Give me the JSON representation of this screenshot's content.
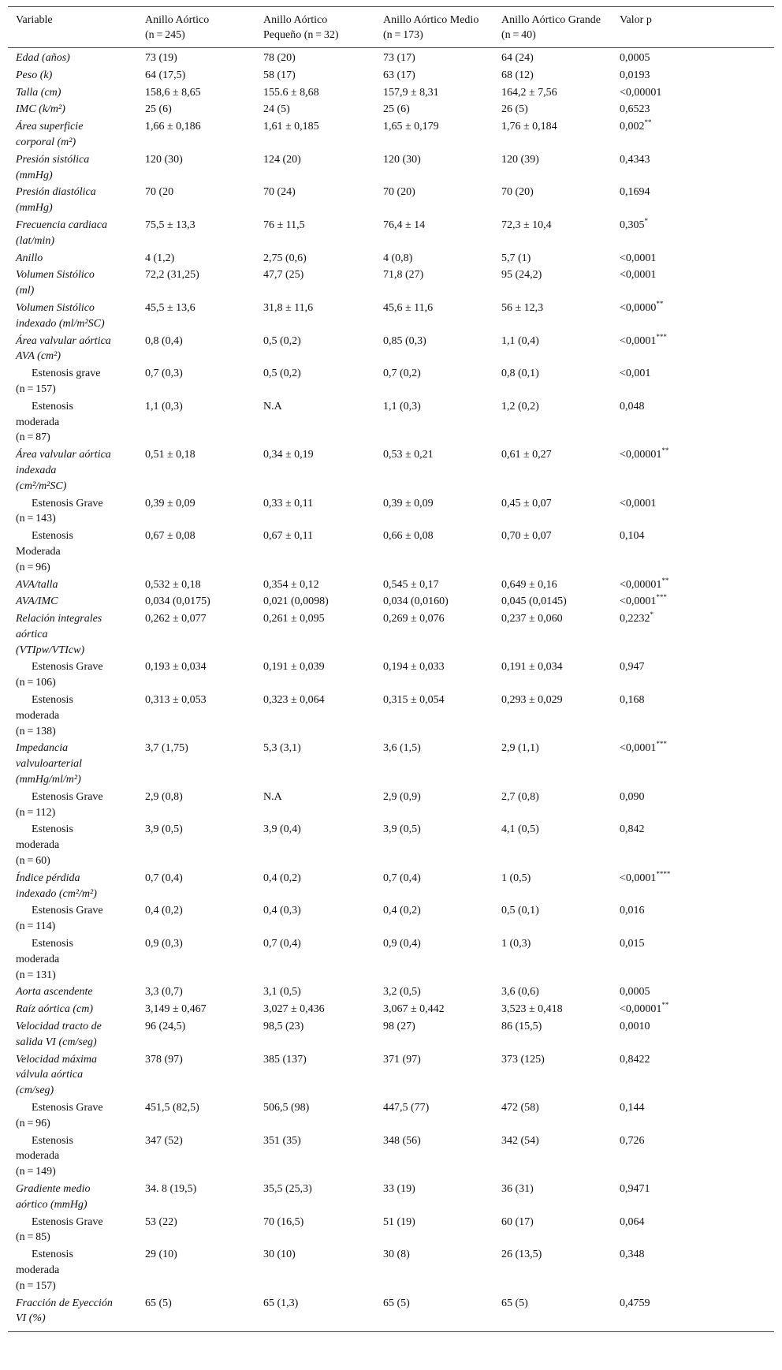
{
  "header": {
    "variable": "Variable",
    "col1": [
      "Anillo Aórtico",
      "(n = 245)"
    ],
    "col2": [
      "Anillo Aórtico",
      "Pequeño (n = 32)"
    ],
    "col3": [
      "Anillo Aórtico Medio",
      "(n = 173)"
    ],
    "col4": [
      "Anillo Aórtico Grande",
      "(n = 40)"
    ],
    "p": "Valor p"
  },
  "rows": [
    {
      "name": [
        "Edad (años)"
      ],
      "v": [
        "73 (19)",
        "78 (20)",
        "73 (17)",
        "64 (24)"
      ],
      "p": "0,0005",
      "sup": ""
    },
    {
      "name": [
        "Peso (k)"
      ],
      "v": [
        "64 (17,5)",
        "58 (17)",
        "63 (17)",
        "68 (12)"
      ],
      "p": "0,0193",
      "sup": ""
    },
    {
      "name": [
        "Talla (cm)"
      ],
      "v": [
        "158,6 ± 8,65",
        "155.6 ± 8,68",
        "157,9 ± 8,31",
        "164,2 ± 7,56"
      ],
      "p": "<0,00001",
      "sup": ""
    },
    {
      "name": [
        "IMC (k/m²)"
      ],
      "v": [
        "25 (6)",
        "24 (5)",
        "25 (6)",
        "26 (5)"
      ],
      "p": "0,6523",
      "sup": ""
    },
    {
      "name": [
        "Área superficie",
        "corporal (m²)"
      ],
      "v": [
        "1,66 ± 0,186",
        "1,61 ± 0,185",
        "1,65 ± 0,179",
        "1,76 ± 0,184"
      ],
      "p": "0,002",
      "sup": "**"
    },
    {
      "name": [
        "Presión sistólica",
        "(mmHg)"
      ],
      "v": [
        "120 (30)",
        "124 (20)",
        "120 (30)",
        "120 (39)"
      ],
      "p": "0,4343",
      "sup": ""
    },
    {
      "name": [
        "Presión diastólica",
        "(mmHg)"
      ],
      "v": [
        "70 (20",
        "70 (24)",
        "70 (20)",
        "70 (20)"
      ],
      "p": "0,1694",
      "sup": ""
    },
    {
      "name": [
        "Frecuencia cardiaca",
        "(lat/min)"
      ],
      "v": [
        "75,5 ± 13,3",
        "76 ± 11,5",
        "76,4 ± 14",
        "72,3 ± 10,4"
      ],
      "p": "0,305",
      "sup": "*"
    },
    {
      "name": [
        "Anillo"
      ],
      "v": [
        "4 (1,2)",
        "2,75 (0,6)",
        "4 (0,8)",
        "5,7 (1)"
      ],
      "p": "<0,0001",
      "sup": ""
    },
    {
      "name": [
        "Volumen Sistólico",
        "(ml)"
      ],
      "v": [
        "72,2 (31,25)",
        "47,7 (25)",
        "71,8 (27)",
        "95 (24,2)"
      ],
      "p": "<0,0001",
      "sup": ""
    },
    {
      "name": [
        "Volumen Sistólico",
        "indexado (ml/m²SC)"
      ],
      "v": [
        "45,5 ± 13,6",
        "31,8 ± 11,6",
        "45,6 ± 11,6",
        "56 ± 12,3"
      ],
      "p": "<0,0000",
      "sup": "**"
    },
    {
      "name": [
        "Área valvular aórtica",
        "AVA (cm²)"
      ],
      "v": [
        "0,8 (0,4)",
        "0,5 (0,2)",
        "0,85 (0,3)",
        "1,1 (0,4)"
      ],
      "p": "<0,0001",
      "sup": "***"
    },
    {
      "sub": true,
      "name": [
        "Estenosis grave",
        "(n = 157)"
      ],
      "v": [
        "0,7 (0,3)",
        "0,5 (0,2)",
        "0,7 (0,2)",
        "0,8 (0,1)"
      ],
      "p": "<0,001",
      "sup": ""
    },
    {
      "sub": true,
      "name": [
        "Estenosis",
        "moderada",
        "(n = 87)"
      ],
      "v": [
        "1,1 (0,3)",
        "N.A",
        "1,1 (0,3)",
        "1,2 (0,2)"
      ],
      "p": "0,048",
      "sup": ""
    },
    {
      "name": [
        "Área valvular aórtica",
        "indexada",
        "(cm²/m²SC)"
      ],
      "v": [
        "0,51 ± 0,18",
        "0,34 ± 0,19",
        "0,53 ± 0,21",
        "0,61 ± 0,27"
      ],
      "p": "<0,00001",
      "sup": "**"
    },
    {
      "sub": true,
      "name": [
        "Estenosis Grave",
        "(n = 143)"
      ],
      "v": [
        "0,39 ± 0,09",
        "0,33 ± 0,11",
        "0,39 ± 0,09",
        "0,45 ± 0,07"
      ],
      "p": "<0,0001",
      "sup": ""
    },
    {
      "sub": true,
      "name": [
        "Estenosis",
        "Moderada",
        "(n = 96)"
      ],
      "v": [
        "0,67 ± 0,08",
        "0,67 ± 0,11",
        "0,66 ± 0,08",
        "0,70 ± 0,07"
      ],
      "p": "0,104",
      "sup": ""
    },
    {
      "name": [
        "AVA/talla"
      ],
      "v": [
        "0,532 ± 0,18",
        "0,354 ± 0,12",
        "0,545 ± 0,17",
        "0,649 ± 0,16"
      ],
      "p": "<0,00001",
      "sup": "**"
    },
    {
      "name": [
        "AVA/IMC"
      ],
      "v": [
        "0,034 (0,0175)",
        "0,021 (0,0098)",
        "0,034 (0,0160)",
        "0,045 (0,0145)"
      ],
      "p": "<0,0001",
      "sup": "***"
    },
    {
      "name": [
        "Relación integrales",
        "aórtica",
        "(VTIpw/VTIcw)"
      ],
      "v": [
        "0,262 ± 0,077",
        "0,261 ± 0,095",
        "0,269 ± 0,076",
        "0,237 ± 0,060"
      ],
      "p": "0,2232",
      "sup": "*"
    },
    {
      "sub": true,
      "name": [
        "Estenosis Grave",
        "(n = 106)"
      ],
      "v": [
        "0,193 ± 0,034",
        "0,191 ± 0,039",
        "0,194 ± 0,033",
        "0,191 ± 0,034"
      ],
      "p": "0,947",
      "sup": ""
    },
    {
      "sub": true,
      "name": [
        "Estenosis",
        "moderada",
        "(n = 138)"
      ],
      "v": [
        "0,313 ± 0,053",
        "0,323 ± 0,064",
        "0,315 ± 0,054",
        "0,293 ± 0,029"
      ],
      "p": "0,168",
      "sup": ""
    },
    {
      "name": [
        "Impedancia",
        "valvuloarterial",
        "(mmHg/ml/m²)"
      ],
      "v": [
        "3,7 (1,75)",
        "5,3 (3,1)",
        "3,6 (1,5)",
        "2,9 (1,1)"
      ],
      "p": "<0,0001",
      "sup": "***"
    },
    {
      "sub": true,
      "name": [
        "Estenosis Grave",
        "(n = 112)"
      ],
      "v": [
        "2,9 (0,8)",
        "N.A",
        "2,9 (0,9)",
        "2,7 (0,8)"
      ],
      "p": "0,090",
      "sup": ""
    },
    {
      "sub": true,
      "name": [
        "Estenosis",
        "moderada",
        "(n = 60)"
      ],
      "v": [
        "3,9 (0,5)",
        "3,9 (0,4)",
        "3,9 (0,5)",
        "4,1 (0,5)"
      ],
      "p": "0,842",
      "sup": ""
    },
    {
      "name": [
        "Índice pérdida",
        "indexado (cm²/m²)"
      ],
      "v": [
        "0,7 (0,4)",
        "0,4 (0,2)",
        "0,7 (0,4)",
        "1 (0,5)"
      ],
      "p": "<0,0001",
      "sup": "****"
    },
    {
      "sub": true,
      "name": [
        "Estenosis Grave",
        "(n = 114)"
      ],
      "v": [
        "0,4 (0,2)",
        "0,4 (0,3)",
        "0,4 (0,2)",
        "0,5 (0,1)"
      ],
      "p": "0,016",
      "sup": ""
    },
    {
      "sub": true,
      "name": [
        "Estenosis",
        "moderada",
        "(n = 131)"
      ],
      "v": [
        "0,9 (0,3)",
        "0,7 (0,4)",
        "0,9 (0,4)",
        "1 (0,3)"
      ],
      "p": "0,015",
      "sup": ""
    },
    {
      "name": [
        "Aorta ascendente"
      ],
      "v": [
        "3,3 (0,7)",
        "3,1 (0,5)",
        "3,2 (0,5)",
        "3,6 (0,6)"
      ],
      "p": "0,0005",
      "sup": ""
    },
    {
      "name": [
        "Raíz aórtica (cm)"
      ],
      "v": [
        "3,149 ± 0,467",
        "3,027 ± 0,436",
        "3,067 ± 0,442",
        "3,523 ± 0,418"
      ],
      "p": "<0,00001",
      "sup": "**"
    },
    {
      "name": [
        "Velocidad tracto de",
        "salida VI (cm/seg)"
      ],
      "v": [
        "96 (24,5)",
        "98,5 (23)",
        "98 (27)",
        "86 (15,5)"
      ],
      "p": "0,0010",
      "sup": ""
    },
    {
      "name": [
        "Velocidad máxima",
        "válvula aórtica",
        "(cm/seg)"
      ],
      "v": [
        "378 (97)",
        "385 (137)",
        "371 (97)",
        "373 (125)"
      ],
      "p": "0,8422",
      "sup": ""
    },
    {
      "sub": true,
      "name": [
        "Estenosis Grave",
        "(n = 96)"
      ],
      "v": [
        "451,5 (82,5)",
        "506,5 (98)",
        "447,5 (77)",
        "472 (58)"
      ],
      "p": "0,144",
      "sup": ""
    },
    {
      "sub": true,
      "name": [
        "Estenosis",
        "moderada",
        "(n = 149)"
      ],
      "v": [
        "347 (52)",
        "351 (35)",
        "348 (56)",
        "342 (54)"
      ],
      "p": "0,726",
      "sup": ""
    },
    {
      "name": [
        "Gradiente medio",
        "aórtico (mmHg)"
      ],
      "v": [
        "34. 8 (19,5)",
        "35,5 (25,3)",
        "33 (19)",
        "36 (31)"
      ],
      "p": "0,9471",
      "sup": ""
    },
    {
      "sub": true,
      "name": [
        "Estenosis Grave",
        "(n = 85)"
      ],
      "v": [
        "53 (22)",
        "70 (16,5)",
        "51 (19)",
        "60 (17)"
      ],
      "p": "0,064",
      "sup": ""
    },
    {
      "sub": true,
      "name": [
        "Estenosis",
        "moderada",
        "(n = 157)"
      ],
      "v": [
        "29 (10)",
        "30 (10)",
        "30 (8)",
        "26 (13,5)"
      ],
      "p": "0,348",
      "sup": ""
    },
    {
      "name": [
        "Fracción de Eyección",
        "VI (%)"
      ],
      "v": [
        "65 (5)",
        "65 (1,3)",
        "65 (5)",
        "65 (5)"
      ],
      "p": "0,4759",
      "sup": ""
    }
  ]
}
